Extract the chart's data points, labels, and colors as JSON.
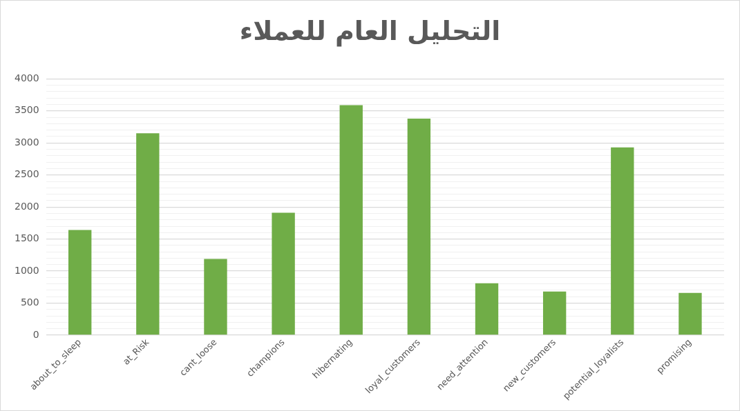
{
  "chart_data": {
    "type": "bar",
    "title": "التحليل العام للعملاء",
    "categories": [
      "about_to_sleep",
      "at_Risk",
      "cant_loose",
      "champions",
      "hibernating",
      "loyal_customers",
      "need_attention",
      "new_customers",
      "potential_loyalists",
      "promising"
    ],
    "values": [
      1640,
      3150,
      1190,
      1910,
      3590,
      3380,
      810,
      680,
      2930,
      660
    ],
    "color": "#70ad47",
    "ylim": [
      0,
      4000
    ],
    "yticks": [
      0,
      {
        "value": 100,
        "label": null
      },
      {
        "value": 200,
        "label": null
      },
      {
        "value": 300,
        "label": null
      },
      {
        "value": 400,
        "label": null
      },
      500,
      {
        "value": 600,
        "label": null
      },
      {
        "value": 700,
        "label": null
      },
      {
        "value": 800,
        "label": null
      },
      {
        "value": 900,
        "label": null
      },
      1000,
      {
        "value": 1100,
        "label": null
      },
      {
        "value": 1200,
        "label": null
      },
      {
        "value": 1300,
        "label": null
      },
      {
        "value": 1400,
        "label": null
      },
      1500,
      {
        "value": 1600,
        "label": null
      },
      {
        "value": 1700,
        "label": null
      },
      {
        "value": 1800,
        "label": null
      },
      {
        "value": 1900,
        "label": null
      },
      2000,
      {
        "value": 2100,
        "label": null
      },
      {
        "value": 2200,
        "label": null
      },
      {
        "value": 2300,
        "label": null
      },
      {
        "value": 2400,
        "label": null
      },
      2500,
      {
        "value": 2600,
        "label": null
      },
      {
        "value": 2700,
        "label": null
      },
      {
        "value": 2800,
        "label": null
      },
      {
        "value": 2900,
        "label": null
      },
      3000,
      {
        "value": 3100,
        "label": null
      },
      {
        "value": 3200,
        "label": null
      },
      {
        "value": 3300,
        "label": null
      },
      {
        "value": 3400,
        "label": null
      },
      3500,
      {
        "value": 3600,
        "label": null
      },
      {
        "value": 3700,
        "label": null
      },
      {
        "value": 3800,
        "label": null
      },
      {
        "value": 3900,
        "label": null
      },
      4000
    ],
    "grid": "y",
    "legend": false
  }
}
